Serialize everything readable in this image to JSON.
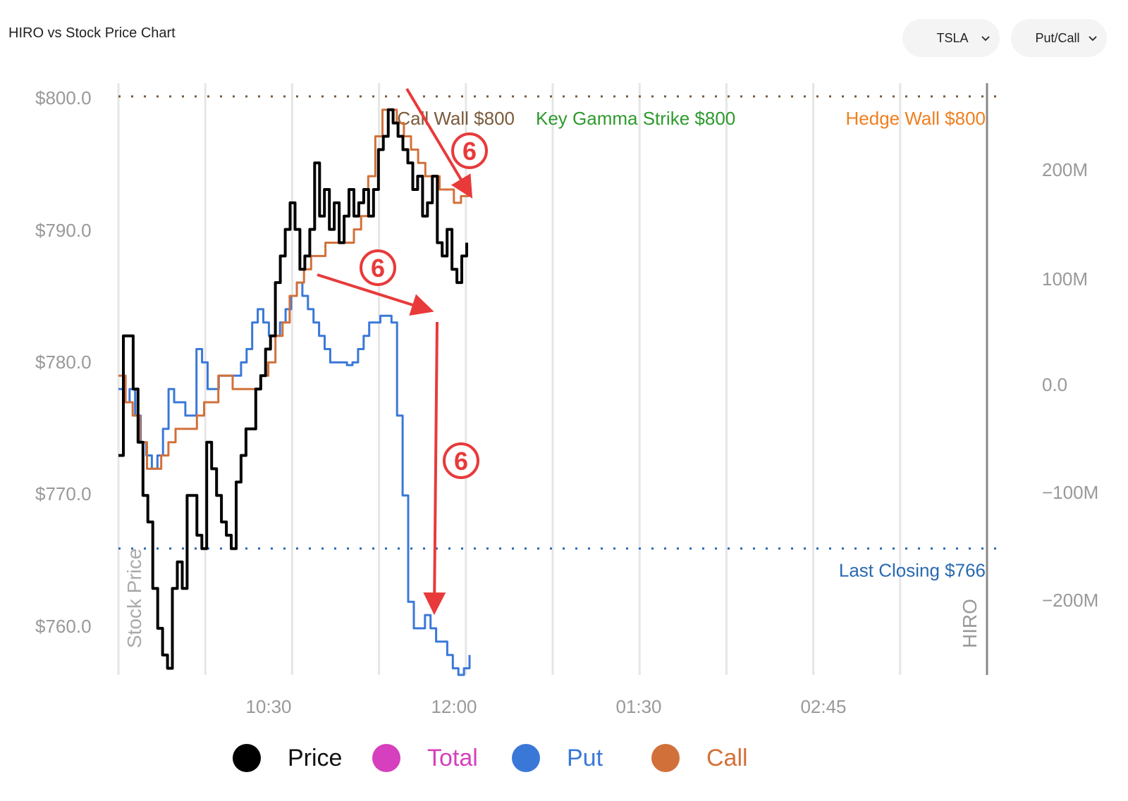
{
  "header": {
    "title": "HIRO vs Stock Price Chart",
    "ticker_select": {
      "value": "TSLA",
      "icon": "chevron-down-icon"
    },
    "mode_select": {
      "value": "Put/Call",
      "icon": "chevron-down-icon"
    }
  },
  "colors": {
    "price": "#000000",
    "total": "#d63fbd",
    "put": "#3a78d8",
    "call": "#d2703a",
    "call_wall": "#7a5a3a",
    "key_gamma": "#2e9a2e",
    "hedge_wall": "#f07f1e",
    "last_closing": "#2a6ab0",
    "annotation": "#e83a3a",
    "axis_text": "#999999",
    "grid": "#e6e6e6"
  },
  "chart_data": {
    "type": "line",
    "left_axis": {
      "label": "Stock Price",
      "ticks": [
        "$800.0",
        "$790.0",
        "$780.0",
        "$770.0",
        "$760.0"
      ],
      "ylim": [
        756.5,
        801
      ]
    },
    "right_axis": {
      "label": "HIRO",
      "ticks": [
        "200M",
        "100M",
        "0.0",
        "−100M",
        "−200M"
      ],
      "ylim": [
        -270,
        290
      ]
    },
    "x_axis": {
      "ticks": [
        "10:30",
        "12:00",
        "01:30",
        "02:45"
      ]
    },
    "reference_lines": [
      {
        "name": "Call Wall",
        "label": "Call Wall $800",
        "value": 800
      },
      {
        "name": "Key Gamma Strike",
        "label": "Key Gamma Strike $800",
        "value": 800
      },
      {
        "name": "Hedge Wall",
        "label": "Hedge Wall $800",
        "value": 800
      },
      {
        "name": "Last Closing",
        "label": "Last Closing $766",
        "value": 766
      }
    ],
    "series": [
      {
        "name": "Price",
        "axis": "left",
        "values": [
          773,
          782,
          782,
          778,
          774,
          770,
          768,
          763,
          760,
          758,
          757,
          763,
          765,
          763,
          770,
          770,
          767,
          766,
          774,
          772,
          770,
          768,
          767,
          766,
          771,
          773,
          775,
          775,
          778,
          779,
          781,
          782,
          786,
          788,
          790,
          792,
          790,
          787,
          788,
          790,
          795,
          791,
          793,
          790,
          792,
          789,
          791,
          793,
          791,
          792,
          793,
          791,
          793,
          796,
          797,
          799,
          798,
          797,
          796,
          795,
          793,
          794,
          791,
          792,
          794,
          789,
          788,
          790,
          787,
          786,
          788,
          789
        ]
      },
      {
        "name": "Put",
        "axis": "left",
        "values": [
          778,
          777,
          778,
          776,
          774,
          773,
          772,
          773,
          775,
          778,
          777,
          777,
          776,
          776,
          781,
          780,
          778,
          778,
          779,
          779,
          779,
          779,
          780,
          781,
          783,
          784,
          783,
          782,
          782,
          783,
          784,
          785,
          786,
          785,
          784,
          783,
          782,
          781,
          780,
          780,
          780,
          779.8,
          780,
          781,
          782,
          783,
          783,
          783.5,
          783.5,
          783,
          776,
          770,
          762,
          760,
          760,
          761,
          760,
          759,
          759,
          758,
          757,
          756.5,
          757,
          758
        ]
      },
      {
        "name": "Call",
        "axis": "left",
        "values": [
          779,
          777,
          776,
          774,
          772,
          772,
          773,
          774,
          775,
          775,
          775,
          776,
          777,
          777,
          779,
          779,
          778,
          778,
          778,
          778,
          779,
          780,
          782,
          783,
          785,
          786,
          787,
          788,
          788,
          789,
          789,
          789,
          789,
          790,
          791,
          794,
          797,
          799,
          799,
          798,
          797,
          796,
          795,
          794,
          794,
          793,
          793,
          792,
          792.5,
          793
        ]
      }
    ]
  },
  "annotations": [
    {
      "label": "6"
    },
    {
      "label": "6"
    },
    {
      "label": "6"
    }
  ],
  "legend": {
    "items": [
      {
        "label": "Price",
        "color": "#000000"
      },
      {
        "label": "Total",
        "color": "#d63fbd"
      },
      {
        "label": "Put",
        "color": "#3a78d8"
      },
      {
        "label": "Call",
        "color": "#d2703a"
      }
    ]
  }
}
